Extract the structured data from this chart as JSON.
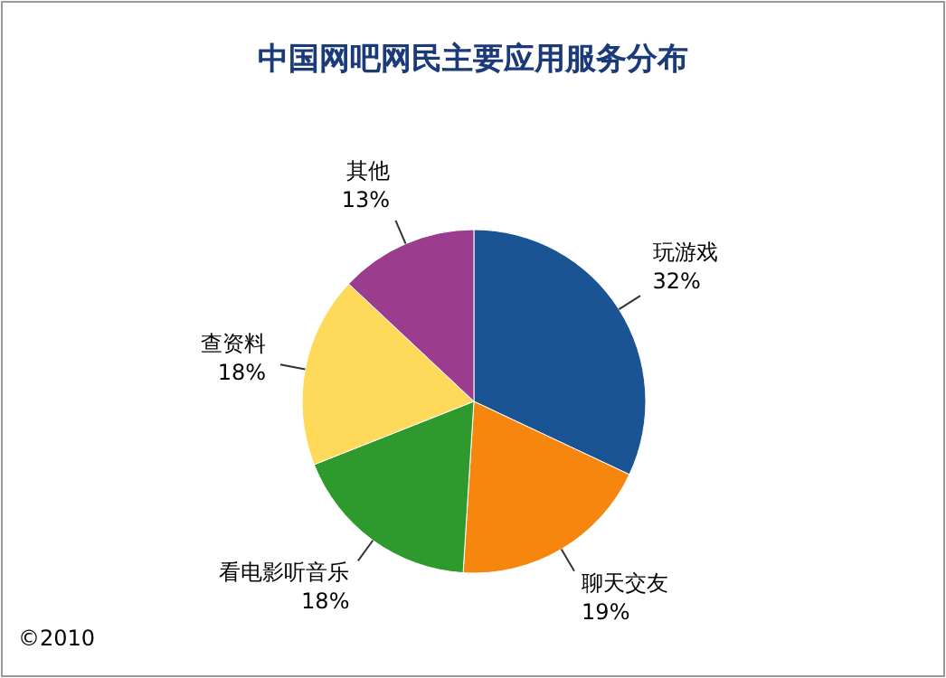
{
  "chart_data": {
    "type": "pie",
    "title": "中国网吧网民主要应用服务分布",
    "categories": [
      "玩游戏",
      "聊天交友",
      "看电影听音乐",
      "查资料",
      "其他"
    ],
    "values": [
      32,
      19,
      18,
      18,
      13
    ],
    "value_labels": [
      "32%",
      "19%",
      "18%",
      "18%",
      "13%"
    ],
    "colors": [
      "#1b5494",
      "#f7860f",
      "#2e9a2e",
      "#ffd95a",
      "#9b3c8e"
    ],
    "annotations": [
      "©2010"
    ]
  }
}
